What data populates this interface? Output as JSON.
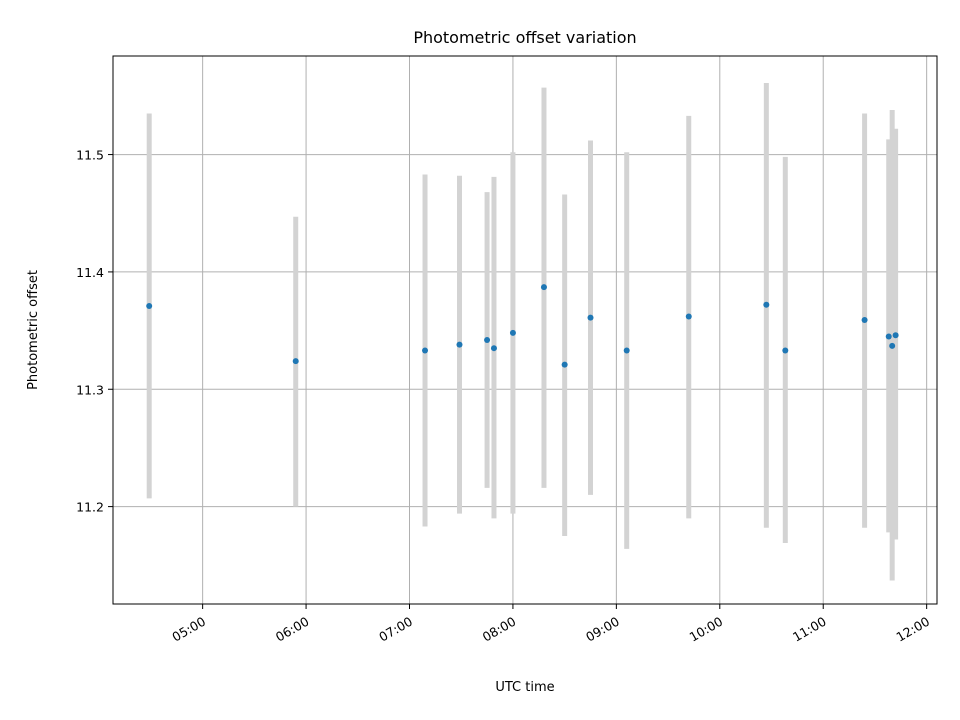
{
  "chart_data": {
    "type": "scatter",
    "title": "Photometric offset variation",
    "xlabel": "UTC time",
    "ylabel": "Photometric offset",
    "x_axis_type": "time",
    "xlim": [
      "04:08",
      "12:06"
    ],
    "ylim": [
      11.117,
      11.584
    ],
    "x_ticks": [
      "05:00",
      "06:00",
      "07:00",
      "08:00",
      "09:00",
      "10:00",
      "11:00",
      "12:00"
    ],
    "y_ticks": [
      "11.2",
      "11.3",
      "11.4",
      "11.5"
    ],
    "grid": true,
    "marker_color": "#1f77b4",
    "errorbar_color": "#d3d3d3",
    "points": [
      {
        "x": "04:29",
        "y": 11.371,
        "y_low": 11.207,
        "y_high": 11.535
      },
      {
        "x": "05:54",
        "y": 11.324,
        "y_low": 11.2,
        "y_high": 11.447
      },
      {
        "x": "07:09",
        "y": 11.333,
        "y_low": 11.183,
        "y_high": 11.483
      },
      {
        "x": "07:29",
        "y": 11.338,
        "y_low": 11.194,
        "y_high": 11.482
      },
      {
        "x": "07:45",
        "y": 11.342,
        "y_low": 11.216,
        "y_high": 11.468
      },
      {
        "x": "07:49",
        "y": 11.335,
        "y_low": 11.19,
        "y_high": 11.481
      },
      {
        "x": "08:00",
        "y": 11.348,
        "y_low": 11.194,
        "y_high": 11.502
      },
      {
        "x": "08:18",
        "y": 11.387,
        "y_low": 11.216,
        "y_high": 11.557
      },
      {
        "x": "08:30",
        "y": 11.321,
        "y_low": 11.175,
        "y_high": 11.466
      },
      {
        "x": "08:45",
        "y": 11.361,
        "y_low": 11.21,
        "y_high": 11.512
      },
      {
        "x": "09:06",
        "y": 11.333,
        "y_low": 11.164,
        "y_high": 11.502
      },
      {
        "x": "09:42",
        "y": 11.362,
        "y_low": 11.19,
        "y_high": 11.533
      },
      {
        "x": "10:27",
        "y": 11.372,
        "y_low": 11.182,
        "y_high": 11.561
      },
      {
        "x": "10:38",
        "y": 11.333,
        "y_low": 11.169,
        "y_high": 11.498
      },
      {
        "x": "11:24",
        "y": 11.359,
        "y_low": 11.182,
        "y_high": 11.535
      },
      {
        "x": "11:38",
        "y": 11.345,
        "y_low": 11.178,
        "y_high": 11.513
      },
      {
        "x": "11:40",
        "y": 11.337,
        "y_low": 11.137,
        "y_high": 11.538
      },
      {
        "x": "11:42",
        "y": 11.346,
        "y_low": 11.172,
        "y_high": 11.522
      }
    ]
  }
}
